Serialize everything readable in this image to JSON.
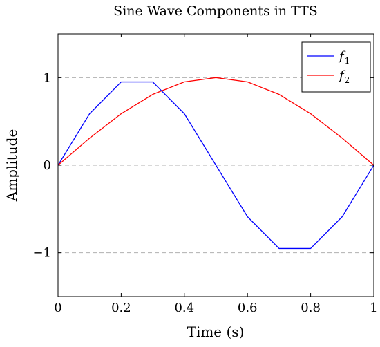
{
  "chart_data": {
    "type": "line",
    "title": "Sine Wave Components in TTS",
    "xlabel": "Time (s)",
    "ylabel": "Amplitude",
    "xlim": [
      0,
      1
    ],
    "ylim": [
      -1.5,
      1.5
    ],
    "x_ticks": [
      0,
      0.2,
      0.4,
      0.6,
      0.8,
      1
    ],
    "x_tick_labels": [
      "0",
      "0.2",
      "0.4",
      "0.6",
      "0.8",
      "1"
    ],
    "y_ticks": [
      -1,
      0,
      1
    ],
    "y_tick_labels": [
      "−1",
      "0",
      "1"
    ],
    "grid": "horizontal dashed at major y ticks",
    "legend_position": "top-right",
    "x": [
      0,
      0.1,
      0.2,
      0.3,
      0.4,
      0.5,
      0.6,
      0.7,
      0.8,
      0.9,
      1.0
    ],
    "series": [
      {
        "name": "f",
        "subscript": "1",
        "color": "#0000ff",
        "values": [
          0,
          0.588,
          0.951,
          0.951,
          0.588,
          0,
          -0.588,
          -0.951,
          -0.951,
          -0.588,
          0
        ]
      },
      {
        "name": "f",
        "subscript": "2",
        "color": "#ff0000",
        "values": [
          0,
          0.309,
          0.588,
          0.809,
          0.951,
          1.0,
          0.951,
          0.809,
          0.588,
          0.309,
          0
        ]
      }
    ]
  }
}
